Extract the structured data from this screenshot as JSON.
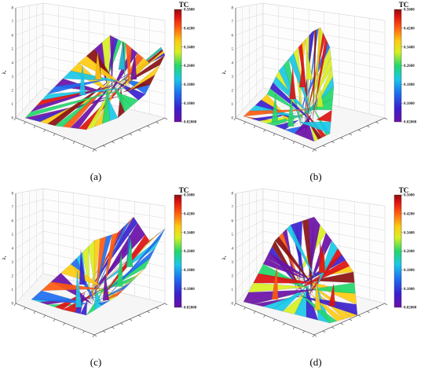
{
  "chart_data": [
    {
      "type": "surface3d",
      "panel_label": "(a)",
      "z_label": "λ₁",
      "z_ticks": [
        "0",
        "1",
        "2",
        "3",
        "4",
        "5",
        "6",
        "7",
        "8"
      ],
      "z_range": [
        0,
        8
      ],
      "colorbar": {
        "title": "TC",
        "ticks": [
          "0.5000",
          "0.4200",
          "0.3400",
          "0.2600",
          "0.1800",
          "0.1000",
          "0.02000"
        ],
        "range": [
          0.02,
          0.5
        ]
      }
    },
    {
      "type": "surface3d",
      "panel_label": "(b)",
      "z_label": "λ₁",
      "z_ticks": [
        "0",
        "1",
        "2",
        "3",
        "4",
        "5",
        "6",
        "7",
        "8"
      ],
      "z_range": [
        0,
        8
      ],
      "colorbar": {
        "title": "TC",
        "ticks": [
          "0.5000",
          "0.4200",
          "0.3400",
          "0.2600",
          "0.1800",
          "0.1000",
          "0.02000"
        ],
        "range": [
          0.02,
          0.5
        ]
      }
    },
    {
      "type": "surface3d",
      "panel_label": "(c)",
      "z_label": "λ₁",
      "z_ticks": [
        "0",
        "1",
        "2",
        "3",
        "4",
        "5",
        "6",
        "7",
        "8"
      ],
      "z_range": [
        0,
        8
      ],
      "colorbar": {
        "title": "TC",
        "ticks": [
          "0.5000",
          "0.4200",
          "0.3400",
          "0.2600",
          "0.1800",
          "0.1000",
          "0.02000"
        ],
        "range": [
          0.02,
          0.5
        ]
      }
    },
    {
      "type": "surface3d",
      "panel_label": "(d)",
      "z_label": "λ₁",
      "z_ticks": [
        "0",
        "1",
        "2",
        "3",
        "4",
        "5",
        "6",
        "7",
        "8"
      ],
      "z_range": [
        0,
        8
      ],
      "colorbar": {
        "title": "TC",
        "ticks": [
          "0.5000",
          "0.4200",
          "0.3400",
          "0.2600",
          "0.1800",
          "0.1000",
          "0.02000"
        ],
        "range": [
          0.02,
          0.5
        ]
      }
    }
  ],
  "colors": {
    "colormap": [
      "#6a0fa8",
      "#3a1fd0",
      "#1d6cf0",
      "#19c8e8",
      "#22d86a",
      "#d8f020",
      "#ffcc10",
      "#ff5a10",
      "#e01010",
      "#8a1010"
    ]
  }
}
